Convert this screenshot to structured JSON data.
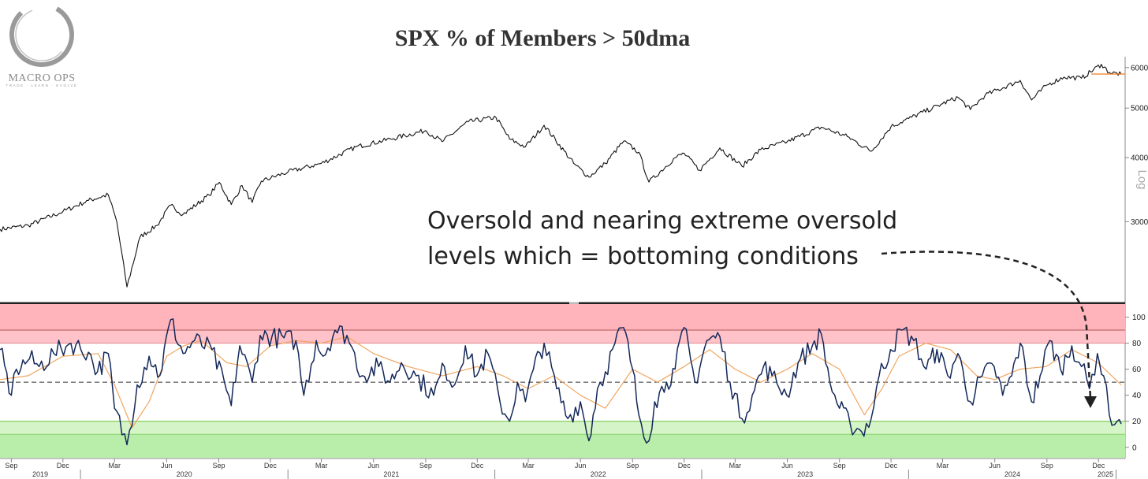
{
  "logo": {
    "brand": "MACRO OPS",
    "tagline": "TRADE · LEARN · EVOLVE"
  },
  "chart_data": [
    {
      "type": "line",
      "title": "SPX % of Members > 50dma",
      "scale": "log",
      "scale_label": "Log",
      "ylim": [
        2100,
        6300
      ],
      "y_ticks": [
        3000,
        4000,
        5000,
        6000
      ],
      "series": [
        {
          "color": "#111111",
          "x": [
            "2019-08-12",
            "2019-10-01",
            "2019-12-01",
            "2020-01-15",
            "2020-02-19",
            "2020-03-05",
            "2020-03-23",
            "2020-04-15",
            "2020-05-15",
            "2020-06-08",
            "2020-06-30",
            "2020-08-15",
            "2020-09-02",
            "2020-09-23",
            "2020-10-12",
            "2020-10-30",
            "2020-11-15",
            "2021-01-01",
            "2021-03-01",
            "2021-05-01",
            "2021-07-01",
            "2021-09-01",
            "2021-09-30",
            "2021-11-15",
            "2022-01-03",
            "2022-01-27",
            "2022-02-24",
            "2022-03-29",
            "2022-05-20",
            "2022-06-16",
            "2022-07-15",
            "2022-08-16",
            "2022-09-12",
            "2022-09-30",
            "2022-11-15",
            "2022-12-01",
            "2022-12-28",
            "2023-02-02",
            "2023-03-13",
            "2023-04-15",
            "2023-06-01",
            "2023-07-31",
            "2023-09-15",
            "2023-10-27",
            "2023-12-01",
            "2024-01-01",
            "2024-03-01",
            "2024-03-28",
            "2024-04-19",
            "2024-05-15",
            "2024-07-16",
            "2024-08-05",
            "2024-09-01",
            "2024-10-01",
            "2024-11-01",
            "2024-12-06",
            "2024-12-20",
            "2025-01-10"
          ],
          "y": [
            2900,
            2950,
            3140,
            3300,
            3386,
            3000,
            2237,
            2800,
            2950,
            3230,
            3100,
            3380,
            3580,
            3240,
            3530,
            3270,
            3600,
            3750,
            3900,
            4200,
            4350,
            4520,
            4300,
            4700,
            4796,
            4350,
            4200,
            4630,
            3900,
            3666,
            3900,
            4305,
            4100,
            3585,
            4000,
            4080,
            3780,
            4180,
            3850,
            4150,
            4300,
            4588,
            4400,
            4117,
            4600,
            4770,
            5100,
            5250,
            4967,
            5300,
            5660,
            5186,
            5550,
            5750,
            5720,
            6090,
            5870,
            5827
          ],
          "last_value": 5827
        }
      ]
    },
    {
      "type": "line",
      "scale": "linear",
      "ylim": [
        -8,
        110
      ],
      "y_ticks": [
        0,
        20,
        40,
        60,
        80,
        100
      ],
      "bands": [
        {
          "from": 80,
          "to": 110,
          "color": "#ffc2c8"
        },
        {
          "from": 90,
          "to": 110,
          "color": "#ffb3ba"
        },
        {
          "from": -8,
          "to": 20,
          "color": "#d5f5c8"
        },
        {
          "from": -8,
          "to": 10,
          "color": "#b9eeaa"
        }
      ],
      "reference_lines": [
        90,
        80,
        50,
        20,
        10
      ],
      "series": [
        {
          "color": "#14285a",
          "x": [
            "2019-08-12",
            "2019-09-01",
            "2019-09-10",
            "2019-10-03",
            "2019-10-20",
            "2019-11-15",
            "2019-12-15",
            "2020-01-15",
            "2020-01-31",
            "2020-02-19",
            "2020-03-01",
            "2020-03-23",
            "2020-04-10",
            "2020-05-01",
            "2020-05-20",
            "2020-06-08",
            "2020-06-30",
            "2020-07-20",
            "2020-08-20",
            "2020-09-23",
            "2020-10-08",
            "2020-10-30",
            "2020-11-13",
            "2021-01-15",
            "2021-01-29",
            "2021-02-20",
            "2021-03-04",
            "2021-03-25",
            "2021-04-15",
            "2021-05-12",
            "2021-06-10",
            "2021-06-30",
            "2021-07-20",
            "2021-08-15",
            "2021-09-15",
            "2021-10-04",
            "2021-10-22",
            "2021-11-10",
            "2021-11-30",
            "2021-12-20",
            "2022-01-10",
            "2022-01-27",
            "2022-02-10",
            "2022-02-24",
            "2022-03-10",
            "2022-03-29",
            "2022-04-20",
            "2022-05-10",
            "2022-06-01",
            "2022-06-16",
            "2022-07-01",
            "2022-07-15",
            "2022-08-01",
            "2022-08-16",
            "2022-09-01",
            "2022-09-12",
            "2022-09-30",
            "2022-10-10",
            "2022-10-31",
            "2022-11-15",
            "2022-12-01",
            "2022-12-20",
            "2023-01-10",
            "2023-02-02",
            "2023-02-20",
            "2023-03-13",
            "2023-03-31",
            "2023-04-20",
            "2023-05-05",
            "2023-05-31",
            "2023-06-20",
            "2023-07-15",
            "2023-07-31",
            "2023-08-15",
            "2023-09-01",
            "2023-09-20",
            "2023-10-10",
            "2023-10-27",
            "2023-11-10",
            "2023-11-30",
            "2023-12-20",
            "2024-01-10",
            "2024-02-01",
            "2024-02-20",
            "2024-03-10",
            "2024-03-28",
            "2024-04-19",
            "2024-05-10",
            "2024-05-31",
            "2024-06-15",
            "2024-07-01",
            "2024-07-16",
            "2024-08-05",
            "2024-08-20",
            "2024-09-06",
            "2024-09-25",
            "2024-10-15",
            "2024-11-01",
            "2024-11-15",
            "2024-11-29",
            "2024-12-10",
            "2024-12-20",
            "2025-01-03",
            "2025-01-10"
          ],
          "y": [
            75,
            40,
            60,
            68,
            62,
            72,
            80,
            73,
            58,
            72,
            30,
            2,
            48,
            70,
            55,
            98,
            72,
            82,
            75,
            32,
            78,
            50,
            86,
            82,
            40,
            82,
            70,
            90,
            86,
            55,
            62,
            50,
            65,
            55,
            40,
            62,
            48,
            78,
            55,
            72,
            35,
            20,
            50,
            35,
            60,
            80,
            45,
            22,
            35,
            5,
            45,
            58,
            80,
            92,
            60,
            25,
            5,
            35,
            50,
            60,
            92,
            50,
            82,
            85,
            50,
            22,
            40,
            62,
            55,
            40,
            65,
            78,
            87,
            50,
            30,
            18,
            12,
            22,
            55,
            75,
            90,
            82,
            60,
            75,
            55,
            72,
            35,
            55,
            62,
            40,
            55,
            80,
            35,
            55,
            82,
            60,
            78,
            62,
            45,
            72,
            55,
            25,
            20,
            18
          ]
        },
        {
          "color": "#f0a560",
          "x": [
            "2019-08-12",
            "2019-10-01",
            "2019-12-01",
            "2020-02-01",
            "2020-03-01",
            "2020-04-01",
            "2020-05-01",
            "2020-06-01",
            "2020-07-01",
            "2020-08-01",
            "2020-09-15",
            "2020-10-20",
            "2020-12-01",
            "2021-01-15",
            "2021-03-01",
            "2021-04-15",
            "2021-06-01",
            "2021-08-01",
            "2021-10-01",
            "2021-12-01",
            "2022-01-15",
            "2022-03-01",
            "2022-04-15",
            "2022-06-01",
            "2022-07-15",
            "2022-09-01",
            "2022-10-15",
            "2022-12-01",
            "2023-01-15",
            "2023-03-01",
            "2023-04-15",
            "2023-06-01",
            "2023-07-15",
            "2023-09-01",
            "2023-10-15",
            "2023-11-15",
            "2023-12-15",
            "2024-01-31",
            "2024-03-15",
            "2024-04-30",
            "2024-06-01",
            "2024-07-15",
            "2024-08-31",
            "2024-10-15",
            "2024-11-30",
            "2025-01-10"
          ],
          "y": [
            52,
            55,
            70,
            72,
            48,
            15,
            35,
            70,
            78,
            82,
            65,
            62,
            78,
            82,
            80,
            85,
            72,
            62,
            55,
            62,
            55,
            45,
            55,
            40,
            30,
            60,
            50,
            62,
            75,
            60,
            50,
            60,
            72,
            60,
            25,
            45,
            70,
            80,
            75,
            55,
            52,
            60,
            62,
            75,
            65,
            48
          ]
        }
      ]
    }
  ],
  "time_axis": {
    "months": [
      {
        "label": "Sep",
        "date": "2019-09-01"
      },
      {
        "label": "Dec",
        "date": "2019-12-01"
      },
      {
        "label": "Mar",
        "date": "2020-03-01"
      },
      {
        "label": "Jun",
        "date": "2020-06-01"
      },
      {
        "label": "Sep",
        "date": "2020-09-01"
      },
      {
        "label": "Dec",
        "date": "2020-12-01"
      },
      {
        "label": "Mar",
        "date": "2021-03-01"
      },
      {
        "label": "Jun",
        "date": "2021-06-01"
      },
      {
        "label": "Sep",
        "date": "2021-09-01"
      },
      {
        "label": "Dec",
        "date": "2021-12-01"
      },
      {
        "label": "Mar",
        "date": "2022-03-01"
      },
      {
        "label": "Jun",
        "date": "2022-06-01"
      },
      {
        "label": "Sep",
        "date": "2022-09-01"
      },
      {
        "label": "Dec",
        "date": "2022-12-01"
      },
      {
        "label": "Mar",
        "date": "2023-03-01"
      },
      {
        "label": "Jun",
        "date": "2023-06-01"
      },
      {
        "label": "Sep",
        "date": "2023-09-01"
      },
      {
        "label": "Dec",
        "date": "2023-12-01"
      },
      {
        "label": "Mar",
        "date": "2024-03-01"
      },
      {
        "label": "Jun",
        "date": "2024-06-01"
      },
      {
        "label": "Sep",
        "date": "2024-09-01"
      },
      {
        "label": "Dec",
        "date": "2024-12-01"
      }
    ],
    "years": [
      "2019",
      "2020",
      "2021",
      "2022",
      "2023",
      "2024",
      "2025"
    ]
  },
  "annotation": {
    "line1": "Oversold and nearing extreme oversold",
    "line2": "levels which = bottoming conditions"
  }
}
